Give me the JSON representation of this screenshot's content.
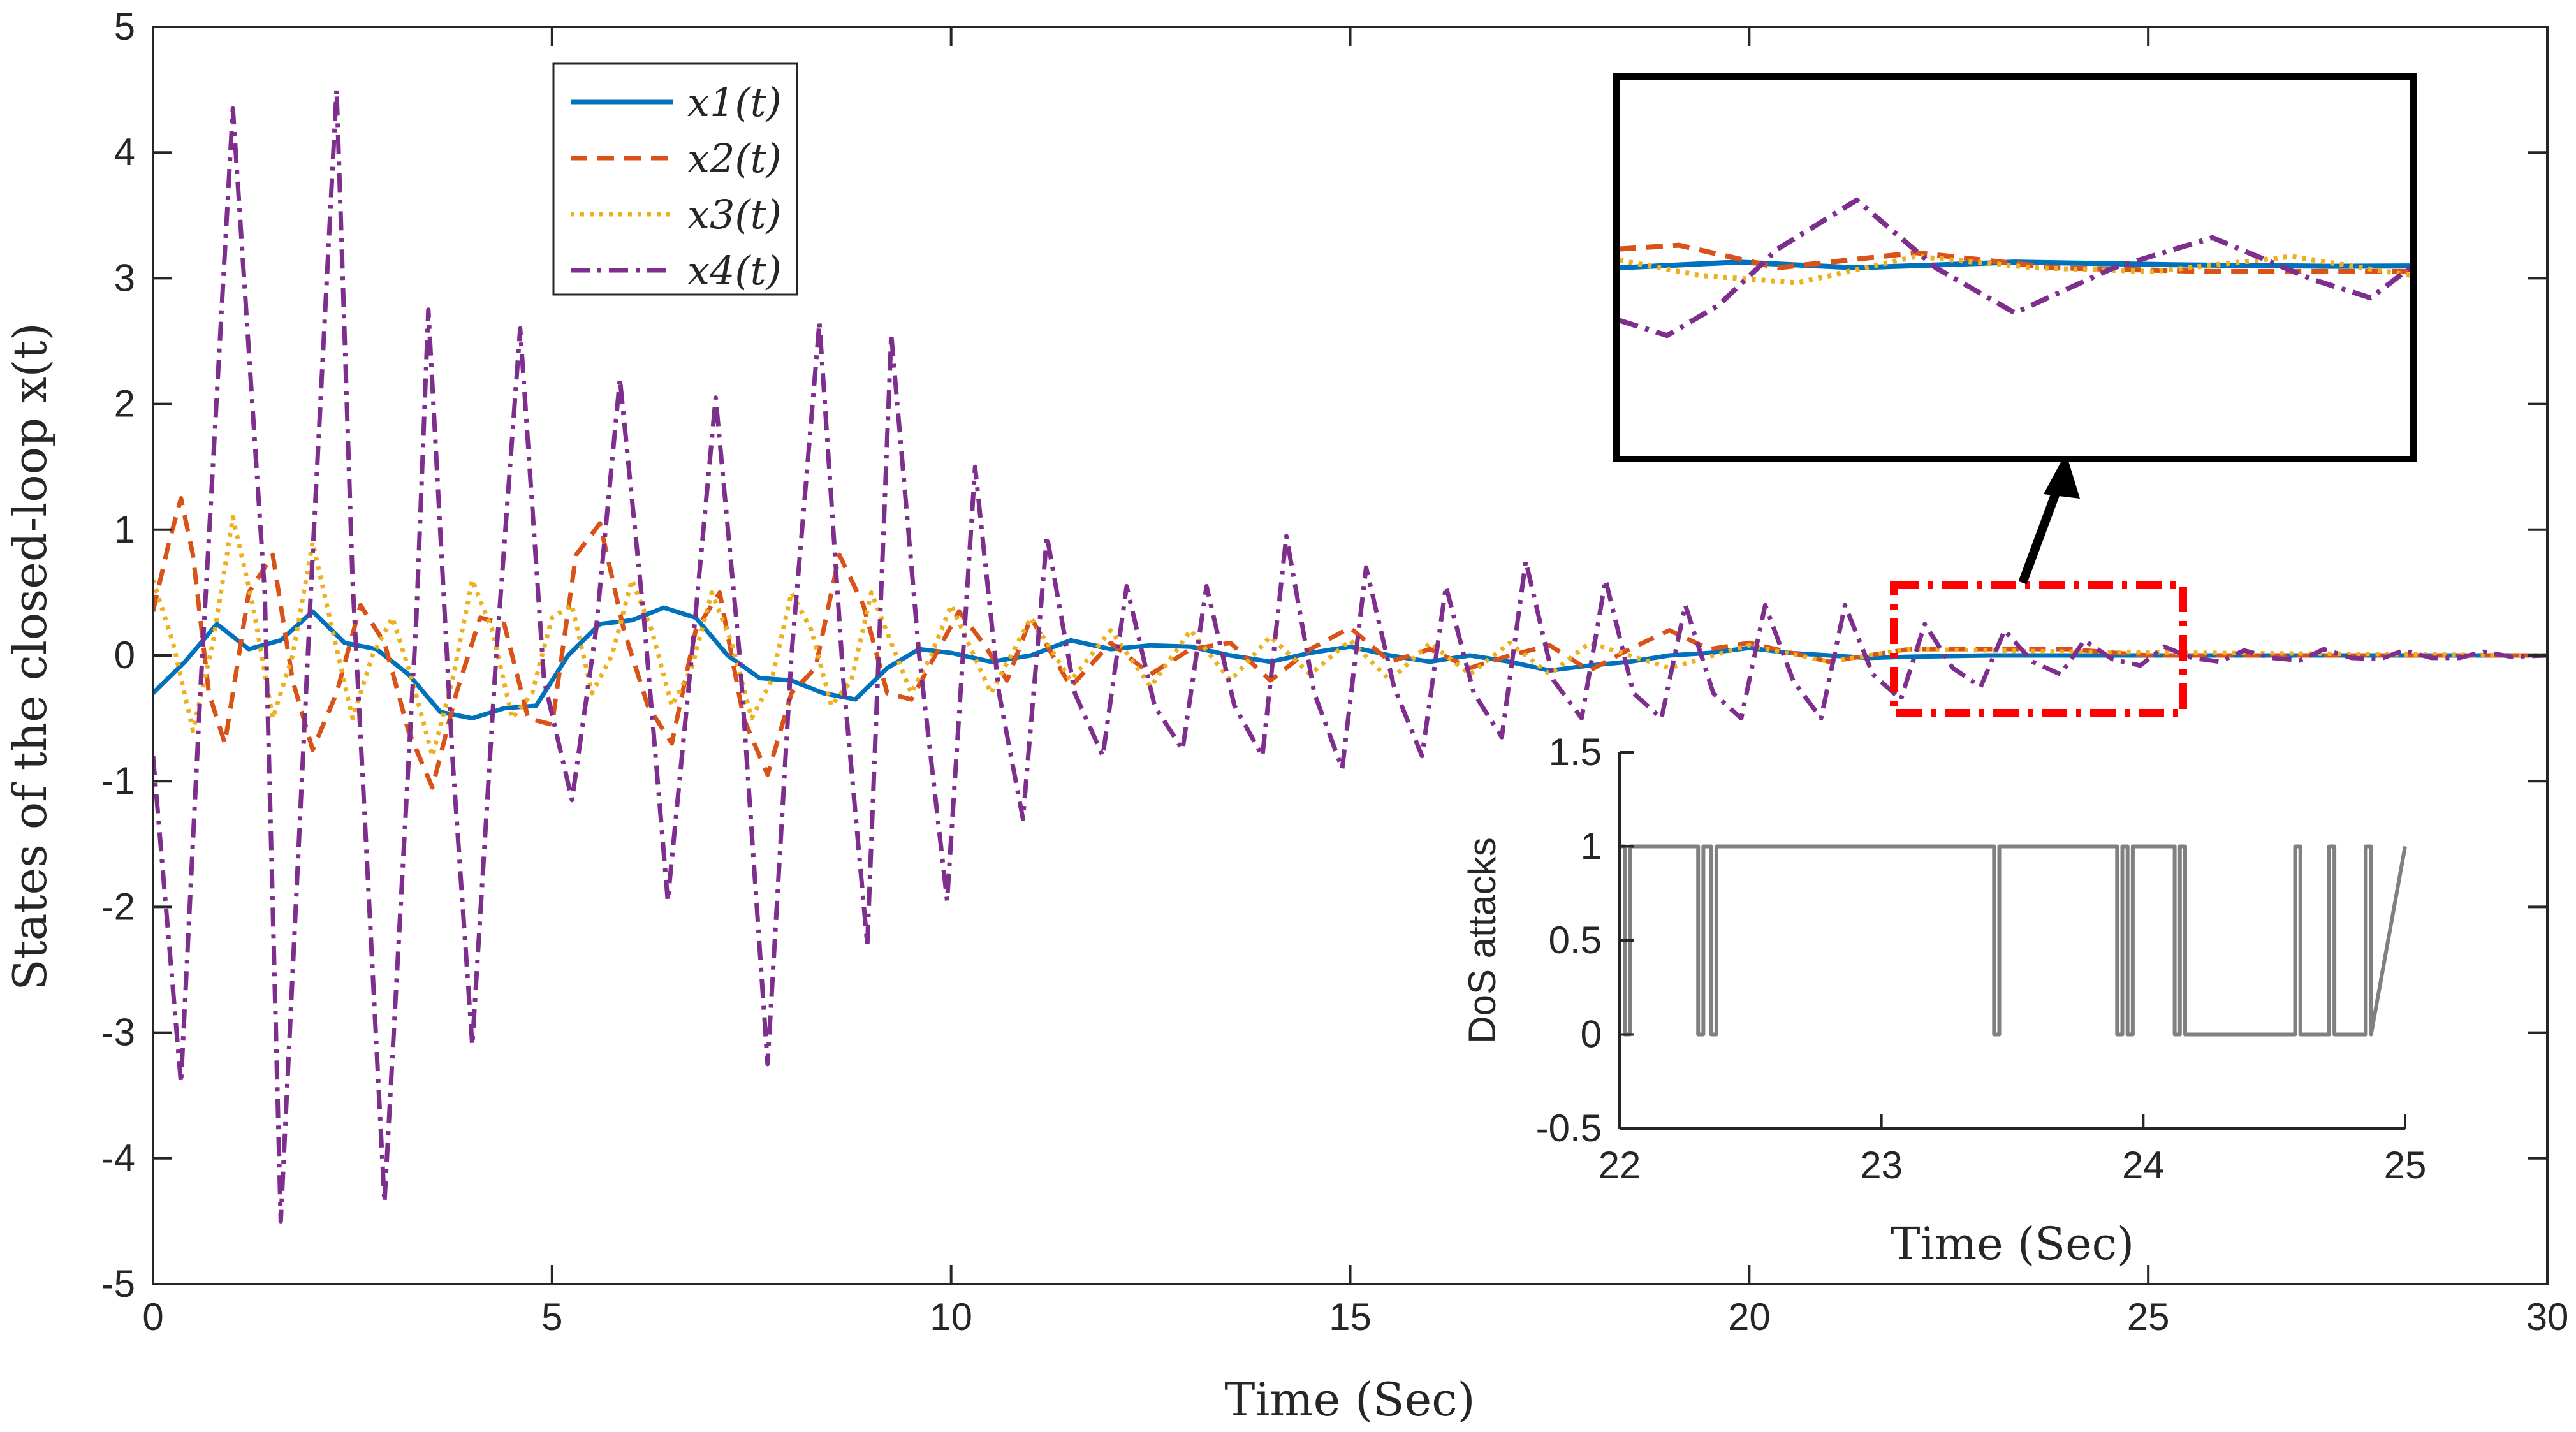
{
  "chart_data": [
    {
      "id": "main",
      "type": "line",
      "xlabel": "Time (Sec)",
      "ylabel": "States of the closed-loop x(t)",
      "xlim": [
        0,
        30
      ],
      "ylim": [
        -5,
        5
      ],
      "xticks": [
        0,
        5,
        10,
        15,
        20,
        25,
        30
      ],
      "xtick_labels": [
        "0",
        "5",
        "10",
        "15",
        "20",
        "25",
        "30"
      ],
      "yticks": [
        -5,
        -4,
        -3,
        -2,
        -1,
        0,
        1,
        2,
        3,
        4,
        5
      ],
      "ytick_labels": [
        "-5",
        "-4",
        "-3",
        "-2",
        "-1",
        "0",
        "1",
        "2",
        "3",
        "4",
        "5"
      ],
      "legend": {
        "placement": "top-left",
        "entries": [
          "x1(t)",
          "x2(t)",
          "x3(t)",
          "x4(t)"
        ]
      },
      "series": [
        {
          "name": "x1(t)",
          "color": "#0072BD",
          "dash": "solid",
          "x": [
            0,
            0.4,
            0.8,
            1.2,
            1.6,
            2.0,
            2.4,
            2.8,
            3.2,
            3.6,
            4.0,
            4.4,
            4.8,
            5.2,
            5.6,
            6.0,
            6.4,
            6.8,
            7.2,
            7.6,
            8.0,
            8.4,
            8.8,
            9.2,
            9.6,
            10.0,
            10.5,
            11.0,
            11.5,
            12.0,
            12.5,
            13.0,
            13.5,
            14.0,
            14.5,
            15.0,
            15.5,
            16.0,
            16.5,
            17.0,
            17.5,
            18.0,
            18.5,
            19.0,
            19.5,
            20.0,
            20.5,
            21.0,
            21.5,
            22.0,
            23.0,
            24.0,
            25.0,
            26.0,
            27.0,
            28.0,
            29.0,
            30.0
          ],
          "y": [
            -0.3,
            -0.05,
            0.25,
            0.05,
            0.12,
            0.35,
            0.1,
            0.05,
            -0.15,
            -0.45,
            -0.5,
            -0.42,
            -0.4,
            0.0,
            0.25,
            0.28,
            0.38,
            0.3,
            0.0,
            -0.18,
            -0.2,
            -0.3,
            -0.35,
            -0.1,
            0.05,
            0.02,
            -0.05,
            0.0,
            0.12,
            0.05,
            0.08,
            0.07,
            0.0,
            -0.05,
            0.02,
            0.07,
            0.0,
            -0.05,
            0.0,
            -0.05,
            -0.12,
            -0.08,
            -0.05,
            0.0,
            0.02,
            0.06,
            0.02,
            0.0,
            -0.02,
            -0.01,
            0.0,
            0.0,
            0.0,
            0.0,
            0.0,
            0.0,
            0.0,
            0.0
          ]
        },
        {
          "name": "x2(t)",
          "color": "#D95319",
          "dash": "dash",
          "x": [
            0,
            0.2,
            0.35,
            0.5,
            0.7,
            0.9,
            1.2,
            1.5,
            1.75,
            2.0,
            2.3,
            2.6,
            2.9,
            3.2,
            3.5,
            3.8,
            4.1,
            4.4,
            4.7,
            5.0,
            5.3,
            5.6,
            5.9,
            6.2,
            6.5,
            6.8,
            7.1,
            7.4,
            7.7,
            8.0,
            8.3,
            8.6,
            8.9,
            9.2,
            9.5,
            9.8,
            10.1,
            10.4,
            10.7,
            11.0,
            11.5,
            12.0,
            12.5,
            13.0,
            13.5,
            14.0,
            14.5,
            15.0,
            15.5,
            16.0,
            16.5,
            17.0,
            17.5,
            18.0,
            18.5,
            19.0,
            19.5,
            20.0,
            21.0,
            22.0,
            23.0,
            24.0,
            25.0,
            26.0,
            28.0,
            30.0
          ],
          "y": [
            0.35,
            0.9,
            1.25,
            0.8,
            -0.3,
            -0.7,
            0.5,
            0.8,
            -0.2,
            -0.75,
            -0.3,
            0.4,
            0.1,
            -0.6,
            -1.05,
            -0.3,
            0.3,
            0.25,
            -0.5,
            -0.55,
            0.8,
            1.05,
            0.2,
            -0.4,
            -0.7,
            0.2,
            0.5,
            -0.5,
            -0.95,
            -0.3,
            -0.1,
            0.8,
            0.4,
            -0.3,
            -0.35,
            0.0,
            0.35,
            0.1,
            -0.2,
            0.3,
            -0.25,
            0.1,
            -0.15,
            0.05,
            0.1,
            -0.2,
            0.05,
            0.22,
            -0.05,
            0.05,
            -0.1,
            0.0,
            0.08,
            -0.12,
            0.05,
            0.2,
            0.05,
            0.1,
            -0.05,
            0.05,
            0.05,
            0.05,
            0.0,
            0.0,
            0.0,
            0.0
          ]
        },
        {
          "name": "x3(t)",
          "color": "#EDB120",
          "dash": "dot",
          "x": [
            0,
            0.25,
            0.5,
            0.75,
            1.0,
            1.25,
            1.5,
            1.75,
            2.0,
            2.25,
            2.5,
            2.75,
            3.0,
            3.25,
            3.5,
            3.75,
            4.0,
            4.25,
            4.5,
            4.75,
            5.0,
            5.25,
            5.5,
            5.75,
            6.0,
            6.25,
            6.5,
            6.75,
            7.0,
            7.25,
            7.5,
            7.75,
            8.0,
            8.25,
            8.5,
            8.75,
            9.0,
            9.25,
            9.5,
            9.75,
            10.0,
            10.5,
            11.0,
            11.5,
            12.0,
            12.5,
            13.0,
            13.5,
            14.0,
            14.5,
            15.0,
            15.5,
            16.0,
            16.5,
            17.0,
            17.5,
            18.0,
            19.0,
            20.0,
            21.0,
            22.0,
            24.0,
            26.0,
            28.0,
            30.0
          ],
          "y": [
            0.6,
            0.1,
            -0.6,
            0.1,
            1.1,
            0.4,
            -0.5,
            0.0,
            0.9,
            0.2,
            -0.5,
            0.0,
            0.3,
            -0.2,
            -0.8,
            -0.2,
            0.6,
            0.2,
            -0.5,
            -0.3,
            0.3,
            0.4,
            -0.3,
            0.0,
            0.6,
            0.2,
            -0.4,
            -0.1,
            0.5,
            0.1,
            -0.5,
            -0.2,
            0.5,
            0.2,
            -0.4,
            -0.2,
            0.5,
            0.1,
            -0.3,
            0.0,
            0.4,
            -0.3,
            0.3,
            -0.2,
            0.2,
            -0.25,
            0.2,
            -0.2,
            0.15,
            -0.15,
            0.12,
            -0.2,
            0.1,
            -0.15,
            0.1,
            -0.15,
            0.1,
            -0.1,
            0.08,
            -0.05,
            0.05,
            0.03,
            0.02,
            0.01,
            0.0
          ]
        },
        {
          "name": "x4(t)",
          "color": "#7E2F8E",
          "dash": "dashdot",
          "x": [
            0,
            0.35,
            0.6,
            1.0,
            1.4,
            1.6,
            2.0,
            2.3,
            2.5,
            2.9,
            3.3,
            3.45,
            3.75,
            4.0,
            4.3,
            4.6,
            4.9,
            5.25,
            5.55,
            5.85,
            6.15,
            6.45,
            6.75,
            7.05,
            7.35,
            7.7,
            8.0,
            8.35,
            8.65,
            8.95,
            9.25,
            9.6,
            9.95,
            10.3,
            10.6,
            10.9,
            11.2,
            11.55,
            11.9,
            12.2,
            12.55,
            12.9,
            13.2,
            13.55,
            13.9,
            14.2,
            14.55,
            14.9,
            15.2,
            15.55,
            15.9,
            16.2,
            16.55,
            16.9,
            17.2,
            17.55,
            17.9,
            18.2,
            18.55,
            18.9,
            19.2,
            19.55,
            19.9,
            20.2,
            20.55,
            20.9,
            21.2,
            21.55,
            21.9,
            22.2,
            22.55,
            22.9,
            23.2,
            23.55,
            23.9,
            24.2,
            24.55,
            24.9,
            25.2,
            25.55,
            25.9,
            26.2,
            26.55,
            26.9,
            27.2,
            27.55,
            27.9,
            28.2,
            28.55,
            28.9,
            29.2,
            29.55,
            30.0
          ],
          "y": [
            -0.8,
            -3.4,
            -0.2,
            4.35,
            0.5,
            -4.5,
            0.8,
            4.5,
            0.6,
            -4.35,
            0.3,
            2.75,
            -0.8,
            -3.1,
            0.0,
            2.6,
            -0.2,
            -1.15,
            0.2,
            2.2,
            0.3,
            -1.95,
            0.0,
            2.05,
            0.0,
            -3.25,
            0.0,
            2.65,
            -0.2,
            -2.3,
            2.55,
            0.0,
            -1.95,
            1.5,
            -0.3,
            -1.3,
            0.95,
            -0.3,
            -0.8,
            0.55,
            -0.4,
            -0.75,
            0.55,
            -0.4,
            -0.8,
            0.95,
            -0.3,
            -0.9,
            0.7,
            -0.25,
            -0.8,
            0.55,
            -0.3,
            -0.65,
            0.75,
            -0.2,
            -0.5,
            0.6,
            -0.3,
            -0.5,
            0.4,
            -0.3,
            -0.5,
            0.4,
            -0.2,
            -0.5,
            0.4,
            -0.15,
            -0.35,
            0.25,
            -0.1,
            -0.25,
            0.2,
            -0.05,
            -0.15,
            0.12,
            -0.03,
            -0.08,
            0.07,
            -0.02,
            -0.05,
            0.04,
            -0.02,
            -0.04,
            0.05,
            -0.02,
            -0.03,
            0.04,
            -0.02,
            -0.02,
            0.03,
            -0.01,
            0.0
          ]
        }
      ]
    },
    {
      "id": "zoom",
      "type": "line",
      "title": "",
      "xlim": [
        23,
        25
      ],
      "ylim": [
        -0.5,
        0.5
      ],
      "series": [
        {
          "name": "x1(t)",
          "color": "#0072BD",
          "dash": "solid",
          "x": [
            23.0,
            23.3,
            23.6,
            24.0,
            24.4,
            24.8,
            25.0
          ],
          "y": [
            0.0,
            0.015,
            0.0,
            0.015,
            0.008,
            0.004,
            0.005
          ]
        },
        {
          "name": "x2(t)",
          "color": "#D95319",
          "dash": "dash",
          "x": [
            23.0,
            23.15,
            23.4,
            23.75,
            24.1,
            24.5,
            25.0
          ],
          "y": [
            0.05,
            0.06,
            0.0,
            0.04,
            0.0,
            -0.01,
            -0.01
          ]
        },
        {
          "name": "x3(t)",
          "color": "#EDB120",
          "dash": "dot",
          "x": [
            23.0,
            23.2,
            23.45,
            23.75,
            24.05,
            24.35,
            24.7,
            25.0
          ],
          "y": [
            0.02,
            -0.02,
            -0.04,
            0.03,
            0.0,
            -0.01,
            0.03,
            -0.02
          ]
        },
        {
          "name": "x4(t)",
          "color": "#7E2F8E",
          "dash": "dashdot",
          "x": [
            23.0,
            23.12,
            23.25,
            23.4,
            23.6,
            23.8,
            24.0,
            24.25,
            24.5,
            24.75,
            24.9,
            25.0
          ],
          "y": [
            -0.14,
            -0.18,
            -0.1,
            0.05,
            0.18,
            0.0,
            -0.12,
            0.0,
            0.08,
            -0.03,
            -0.08,
            0.0
          ]
        }
      ]
    },
    {
      "id": "dos",
      "type": "line",
      "xlabel": "Time (Sec)",
      "ylabel": "DoS attacks",
      "xlim": [
        22,
        25
      ],
      "ylim": [
        -0.5,
        1.5
      ],
      "xticks": [
        22,
        23,
        24,
        25
      ],
      "xtick_labels": [
        "22",
        "23",
        "24",
        "25"
      ],
      "yticks": [
        -0.5,
        0,
        0.5,
        1,
        1.5
      ],
      "ytick_labels": [
        "-0.5",
        "0",
        "0.5",
        "1",
        "1.5"
      ],
      "series": [
        {
          "name": "DoS",
          "color": "#808080",
          "x": [
            22.0,
            22.02,
            22.02,
            22.04,
            22.04,
            22.3,
            22.3,
            22.32,
            22.32,
            22.35,
            22.35,
            22.37,
            22.37,
            23.43,
            23.43,
            23.45,
            23.45,
            23.9,
            23.9,
            23.92,
            23.92,
            23.94,
            23.94,
            23.96,
            23.96,
            24.12,
            24.12,
            24.14,
            24.14,
            24.16,
            24.16,
            24.58,
            24.58,
            24.6,
            24.6,
            24.71,
            24.71,
            24.73,
            24.73,
            24.85,
            24.85,
            24.87,
            24.87,
            25.0
          ],
          "y": [
            1,
            1,
            0,
            0,
            1,
            1,
            0,
            0,
            1,
            1,
            0,
            0,
            1,
            1,
            0,
            0,
            1,
            1,
            0,
            0,
            1,
            1,
            0,
            0,
            1,
            1,
            0,
            0,
            1,
            1,
            0,
            0,
            1,
            1,
            0,
            0,
            1,
            1,
            0,
            0,
            1,
            1,
            0,
            1
          ]
        }
      ]
    }
  ]
}
